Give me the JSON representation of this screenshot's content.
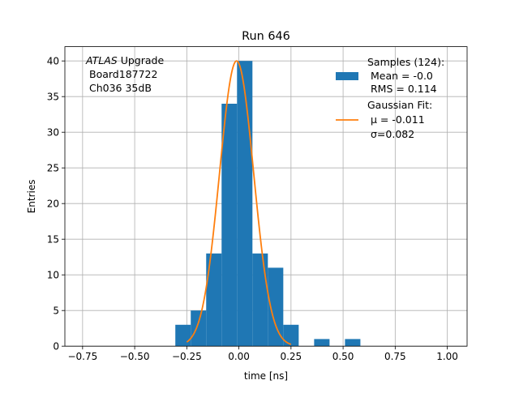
{
  "chart_data": {
    "type": "bar",
    "title": "Run 646",
    "xlabel": "time [ns]",
    "ylabel": "Entries",
    "xlim": [
      -0.835,
      1.095
    ],
    "ylim": [
      0,
      42
    ],
    "x_ticks": [
      -0.75,
      -0.5,
      -0.25,
      0.0,
      0.25,
      0.5,
      0.75,
      1.0
    ],
    "x_tick_labels": [
      "−0.75",
      "−0.50",
      "−0.25",
      "0.00",
      "0.25",
      "0.50",
      "0.75",
      "1.00"
    ],
    "y_ticks": [
      0,
      5,
      10,
      15,
      20,
      25,
      30,
      35,
      40
    ],
    "y_tick_labels": [
      "0",
      "5",
      "10",
      "15",
      "20",
      "25",
      "30",
      "35",
      "40"
    ],
    "grid": true,
    "bin_edges": [
      -0.305,
      -0.231,
      -0.157,
      -0.083,
      -0.009,
      0.065,
      0.139,
      0.213,
      0.287,
      0.361,
      0.435,
      0.509,
      0.583
    ],
    "bin_counts": [
      3,
      5,
      13,
      34,
      40,
      13,
      11,
      3,
      0,
      1,
      0,
      1
    ],
    "histogram_color": "#1f77b4",
    "fit_color": "#ff7f0e",
    "fit": {
      "amplitude": 40,
      "mu": -0.011,
      "sigma": 0.082,
      "x_range": [
        -0.25,
        0.25
      ]
    },
    "annotation": {
      "italic_part": "ATLAS",
      "line1_rest": "Upgrade",
      "line2": "Board187722",
      "line3": "Ch036 35dB"
    },
    "legend": {
      "placement": "upper right",
      "hist_lines": [
        "Samples (124):",
        "Mean = -0.0",
        "RMS = 0.114"
      ],
      "fit_lines": [
        "Gaussian Fit:",
        "μ = -0.011",
        "σ=0.082"
      ]
    }
  }
}
